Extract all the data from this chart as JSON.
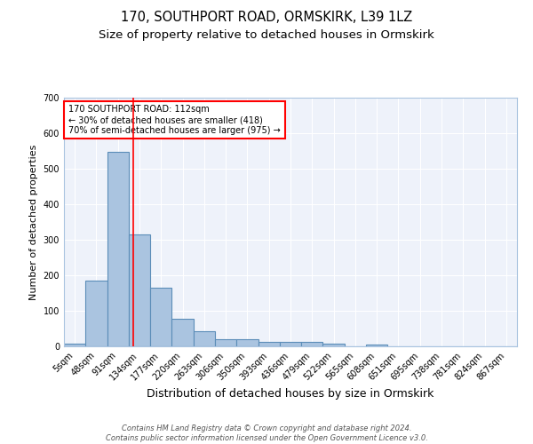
{
  "title": "170, SOUTHPORT ROAD, ORMSKIRK, L39 1LZ",
  "subtitle": "Size of property relative to detached houses in Ormskirk",
  "xlabel": "Distribution of detached houses by size in Ormskirk",
  "ylabel": "Number of detached properties",
  "categories": [
    "5sqm",
    "48sqm",
    "91sqm",
    "134sqm",
    "177sqm",
    "220sqm",
    "263sqm",
    "306sqm",
    "350sqm",
    "393sqm",
    "436sqm",
    "479sqm",
    "522sqm",
    "565sqm",
    "608sqm",
    "651sqm",
    "695sqm",
    "738sqm",
    "781sqm",
    "824sqm",
    "867sqm"
  ],
  "values": [
    8,
    185,
    548,
    315,
    165,
    77,
    42,
    20,
    20,
    12,
    13,
    13,
    8,
    0,
    6,
    0,
    0,
    0,
    0,
    0,
    0
  ],
  "bar_color": "#aac4e0",
  "bar_edge_color": "#5b8db8",
  "bg_color": "#eef2fa",
  "grid_color": "#ffffff",
  "red_line_x": 2.72,
  "annotation_text": "170 SOUTHPORT ROAD: 112sqm\n← 30% of detached houses are smaller (418)\n70% of semi-detached houses are larger (975) →",
  "annotation_box_color": "white",
  "annotation_box_edge": "red",
  "ylim": [
    0,
    700
  ],
  "yticks": [
    0,
    100,
    200,
    300,
    400,
    500,
    600,
    700
  ],
  "footer": "Contains HM Land Registry data © Crown copyright and database right 2024.\nContains public sector information licensed under the Open Government Licence v3.0.",
  "title_fontsize": 10.5,
  "subtitle_fontsize": 9.5,
  "xlabel_fontsize": 9,
  "ylabel_fontsize": 8,
  "tick_fontsize": 7,
  "footer_fontsize": 6,
  "annot_fontsize": 7
}
